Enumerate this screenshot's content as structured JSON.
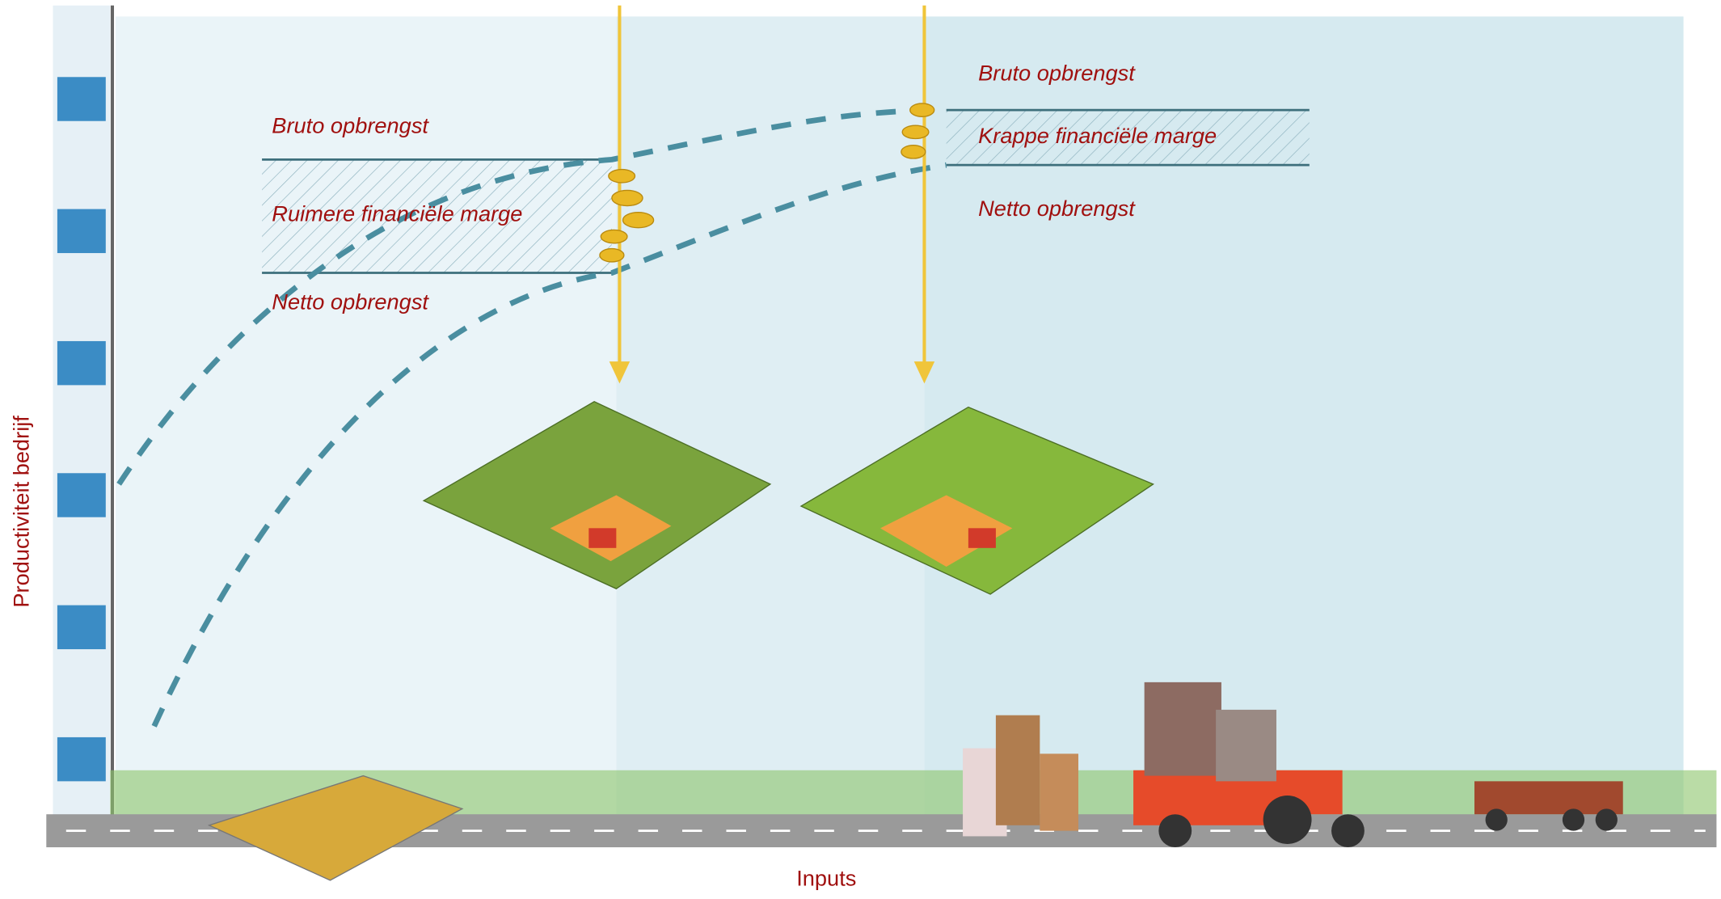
{
  "y_axis_label": "Productiviteit bedrijf",
  "x_axis_label": "Inputs",
  "panels": [
    {
      "gross": "Bruto opbrengst",
      "margin": "Ruimere financiële marge",
      "net": "Netto opbrengst"
    },
    {
      "gross": "Bruto opbrengst",
      "margin": "Krappe financiële marge",
      "net": "Netto opbrengst"
    }
  ]
}
